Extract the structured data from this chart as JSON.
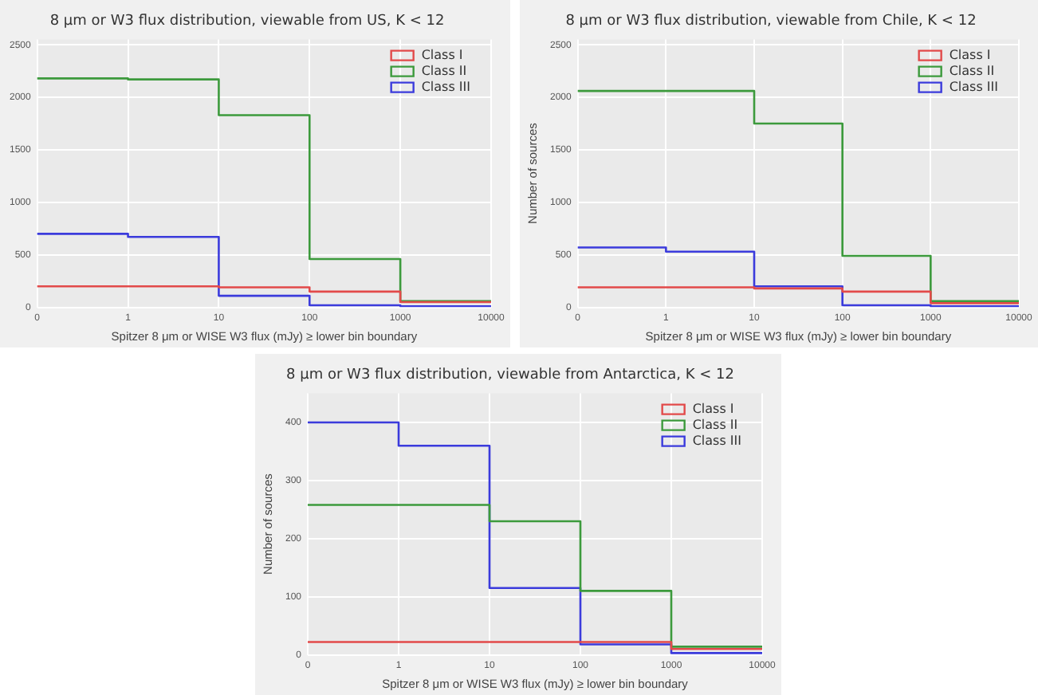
{
  "chart_data": [
    {
      "type": "step",
      "title": "8 μm or W3 flux distribution, viewable from US, K < 12",
      "xlabel": "Spitzer 8 μm or WISE W3 flux (mJy) ≥ lower bin boundary",
      "categories": [
        "0",
        "1",
        "10",
        "100",
        "1000",
        "10000"
      ],
      "ylim": [
        0,
        2550
      ],
      "yticks": [
        0,
        500,
        1000,
        1500,
        2000,
        2500
      ],
      "grid": true,
      "legend": "top right",
      "series": [
        {
          "name": "Class I",
          "color": "#e24a4a",
          "values": [
            200,
            200,
            190,
            150,
            50,
            50
          ]
        },
        {
          "name": "Class II",
          "color": "#3c9a3c",
          "values": [
            2180,
            2170,
            1830,
            460,
            60,
            60
          ]
        },
        {
          "name": "Class III",
          "color": "#3b3bdc",
          "values": [
            700,
            670,
            110,
            20,
            10,
            10
          ]
        }
      ]
    },
    {
      "type": "step",
      "title": "8 μm or W3 flux distribution, viewable from Chile, K < 12",
      "xlabel": "Spitzer 8 μm or WISE W3 flux (mJy) ≥ lower bin boundary",
      "ylabel": "Number of sources",
      "categories": [
        "0",
        "1",
        "10",
        "100",
        "1000",
        "10000"
      ],
      "ylim": [
        0,
        2550
      ],
      "yticks": [
        0,
        500,
        1000,
        1500,
        2000,
        2500
      ],
      "grid": true,
      "legend": "top right",
      "series": [
        {
          "name": "Class I",
          "color": "#e24a4a",
          "values": [
            190,
            190,
            180,
            150,
            40,
            40
          ]
        },
        {
          "name": "Class II",
          "color": "#3c9a3c",
          "values": [
            2060,
            2060,
            1750,
            490,
            60,
            60
          ]
        },
        {
          "name": "Class III",
          "color": "#3b3bdc",
          "values": [
            570,
            530,
            200,
            20,
            10,
            10
          ]
        }
      ]
    },
    {
      "type": "step",
      "title": "8 μm or W3 flux distribution, viewable from Antarctica, K < 12",
      "xlabel": "Spitzer 8 μm or WISE W3 flux (mJy) ≥ lower bin boundary",
      "ylabel": "Number of sources",
      "categories": [
        "0",
        "1",
        "10",
        "100",
        "1000",
        "10000"
      ],
      "ylim": [
        0,
        450
      ],
      "yticks": [
        0,
        100,
        200,
        300,
        400
      ],
      "grid": true,
      "legend": "top right",
      "series": [
        {
          "name": "Class I",
          "color": "#e24a4a",
          "values": [
            22,
            22,
            22,
            22,
            10,
            10
          ]
        },
        {
          "name": "Class II",
          "color": "#3c9a3c",
          "values": [
            258,
            258,
            230,
            110,
            14,
            14
          ]
        },
        {
          "name": "Class III",
          "color": "#3b3bdc",
          "values": [
            400,
            360,
            115,
            18,
            3,
            3
          ]
        }
      ]
    }
  ]
}
